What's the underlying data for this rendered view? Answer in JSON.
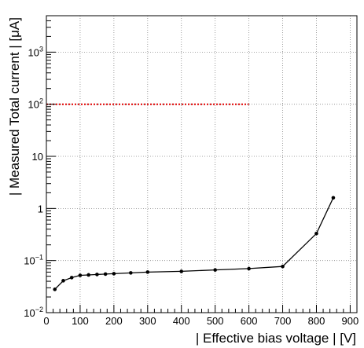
{
  "chart_data": {
    "type": "line",
    "title": "",
    "xlabel": "| Effective bias voltage | [V]",
    "ylabel": "| Measured Total current | [μA]",
    "xlim": [
      0,
      920
    ],
    "ylim": [
      0.01,
      5000
    ],
    "yscale": "log",
    "grid": true,
    "x_ticks": [
      "0",
      "100",
      "200",
      "300",
      "400",
      "500",
      "600",
      "700",
      "800",
      "900"
    ],
    "y_ticks": [
      {
        "base": "10",
        "exp": "−2",
        "value": 0.01
      },
      {
        "base": "10",
        "exp": "−1",
        "value": 0.1
      },
      {
        "base": "1",
        "exp": "",
        "value": 1
      },
      {
        "base": "10",
        "exp": "",
        "value": 10
      },
      {
        "base": "10",
        "exp": "2",
        "value": 100
      },
      {
        "base": "10",
        "exp": "3",
        "value": 1000
      }
    ],
    "series": [
      {
        "color": "#000000",
        "x": [
          25,
          50,
          75,
          100,
          125,
          150,
          175,
          200,
          250,
          300,
          400,
          500,
          600,
          700,
          800,
          850
        ],
        "y": [
          0.028,
          0.041,
          0.047,
          0.052,
          0.053,
          0.054,
          0.055,
          0.056,
          0.058,
          0.06,
          0.062,
          0.066,
          0.07,
          0.077,
          0.33,
          1.6
        ]
      }
    ],
    "reference_line": {
      "y": 100,
      "x_from": 0,
      "x_to": 600,
      "color": "#e00000",
      "style": "dotted"
    }
  }
}
